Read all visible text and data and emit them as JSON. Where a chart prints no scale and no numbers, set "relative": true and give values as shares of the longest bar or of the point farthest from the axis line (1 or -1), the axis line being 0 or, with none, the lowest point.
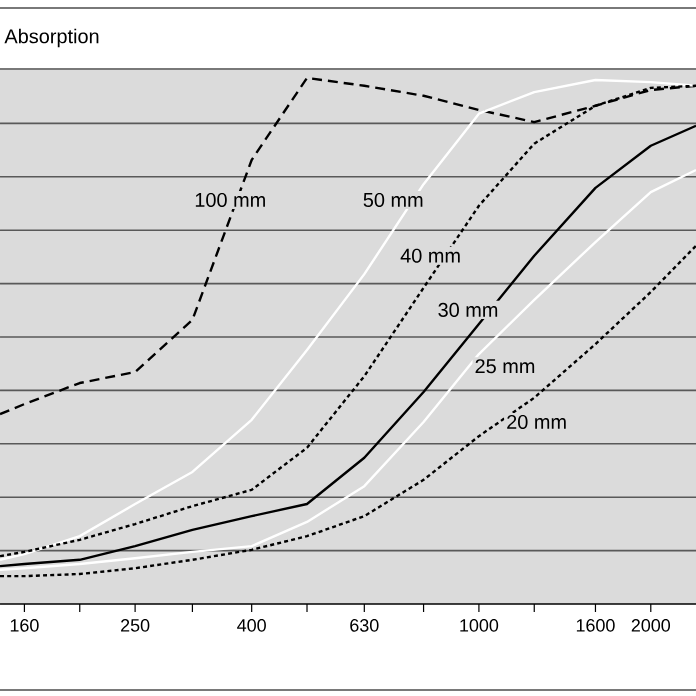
{
  "chart_data": {
    "type": "line",
    "title": "Absorption",
    "relative": true,
    "grid": "y",
    "tick_labels": "x",
    "x": [
      145,
      160,
      200,
      250,
      315,
      400,
      500,
      630,
      800,
      1000,
      1250,
      1600,
      2000,
      2400
    ],
    "xlim": [
      145,
      2400
    ],
    "log": "x",
    "xticks": [
      160,
      {
        "value": 200,
        "label": null
      },
      250,
      {
        "value": 315,
        "label": null
      },
      400,
      {
        "value": 500,
        "label": null
      },
      630,
      {
        "value": 800,
        "label": null
      },
      1000,
      {
        "value": 1250,
        "label": null
      },
      1600,
      {
        "value": 2000,
        "label": "2000"
      }
    ],
    "series": [
      {
        "name": "100 mm",
        "color": "#000000",
        "line_style": "dashed",
        "values": [
          0.361,
          0.38,
          0.42,
          0.441,
          0.54,
          0.844,
          1.0,
          0.985,
          0.966,
          0.939,
          0.916,
          0.947,
          0.977,
          0.985
        ]
      },
      {
        "name": "50 mm",
        "color": "#ffffff",
        "line_style": "solid",
        "values": [
          0.084,
          0.095,
          0.129,
          0.19,
          0.251,
          0.35,
          0.483,
          0.627,
          0.798,
          0.932,
          0.973,
          0.996,
          0.992,
          0.985
        ]
      },
      {
        "name": "40 mm",
        "color": "#000000",
        "line_style": "dotted",
        "values": [
          0.091,
          0.099,
          0.122,
          0.152,
          0.186,
          0.217,
          0.297,
          0.433,
          0.601,
          0.757,
          0.875,
          0.947,
          0.981,
          0.985
        ]
      },
      {
        "name": "30 mm",
        "color": "#000000",
        "line_style": "solid",
        "values": [
          0.072,
          0.076,
          0.084,
          0.11,
          0.141,
          0.167,
          0.19,
          0.278,
          0.403,
          0.532,
          0.662,
          0.791,
          0.871,
          0.909
        ]
      },
      {
        "name": "25 mm",
        "color": "#ffffff",
        "line_style": "solid",
        "values": [
          0.065,
          0.068,
          0.076,
          0.087,
          0.099,
          0.11,
          0.156,
          0.224,
          0.346,
          0.475,
          0.578,
          0.688,
          0.783,
          0.825
        ]
      },
      {
        "name": "20 mm",
        "color": "#000000",
        "line_style": "dotted",
        "values": [
          0.053,
          0.053,
          0.057,
          0.068,
          0.084,
          0.103,
          0.129,
          0.167,
          0.236,
          0.319,
          0.392,
          0.494,
          0.593,
          0.681
        ]
      }
    ]
  }
}
